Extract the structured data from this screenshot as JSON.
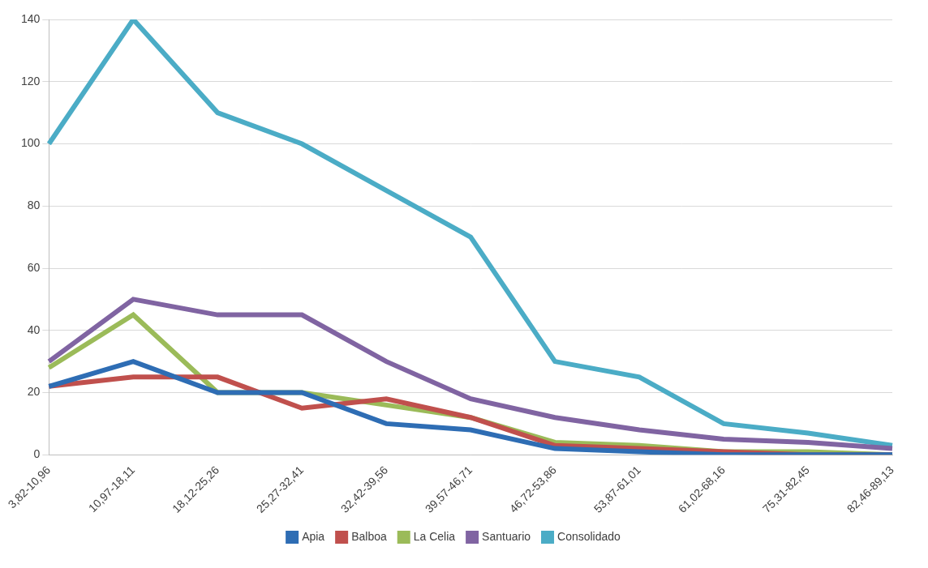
{
  "chart_data": {
    "type": "line",
    "categories": [
      "3,82-10,96",
      "10,97-18,11",
      "18,12-25,26",
      "25,27-32,41",
      "32,42-39,56",
      "39,57-46,71",
      "46,72-53,86",
      "53,87-61,01",
      "61,02-68,16",
      "75,31-82,45",
      "82,46-89,13"
    ],
    "series": [
      {
        "name": "Apia",
        "color": "#2e6db4",
        "values": [
          22,
          30,
          20,
          20,
          10,
          8,
          2,
          1,
          0,
          0,
          0
        ]
      },
      {
        "name": "Balboa",
        "color": "#c0504d",
        "values": [
          22,
          25,
          25,
          15,
          18,
          12,
          3,
          2,
          1,
          0,
          0
        ]
      },
      {
        "name": "La Celia",
        "color": "#9bbb59",
        "values": [
          28,
          45,
          20,
          20,
          16,
          12,
          4,
          3,
          1,
          1,
          0
        ]
      },
      {
        "name": "Santuario",
        "color": "#8064a2",
        "values": [
          30,
          50,
          45,
          45,
          30,
          18,
          12,
          8,
          5,
          4,
          2
        ]
      },
      {
        "name": "Consolidado",
        "color": "#4bacc6",
        "values": [
          100,
          140,
          110,
          100,
          85,
          70,
          30,
          25,
          10,
          7,
          3
        ]
      }
    ],
    "ylim": [
      0,
      140
    ],
    "yticks": [
      0,
      20,
      40,
      60,
      80,
      100,
      120,
      140
    ],
    "grid": true,
    "legend": "bottom",
    "marker": "none"
  }
}
